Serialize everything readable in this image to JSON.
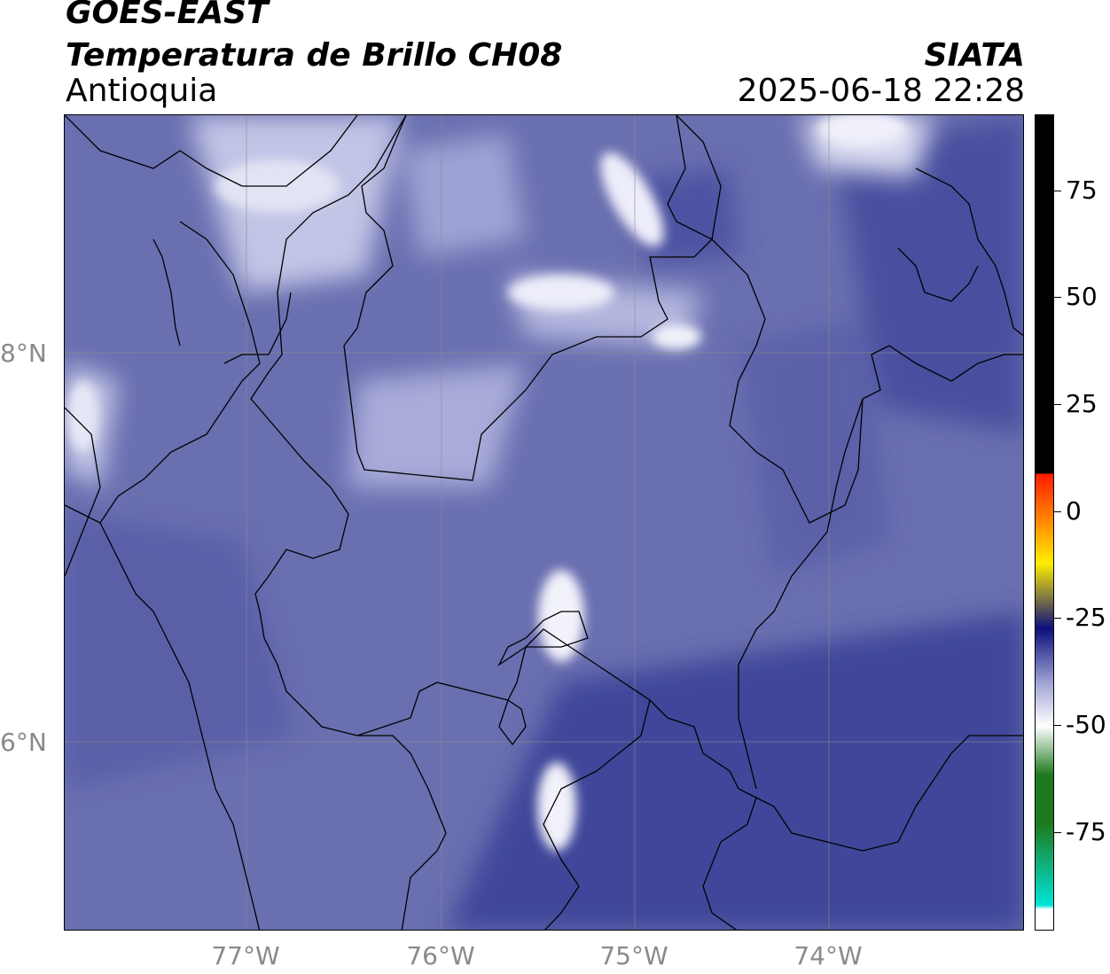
{
  "header": {
    "satellite": "GOES-EAST",
    "product": "Temperatura de Brillo CH08",
    "region": "Antioquia",
    "organization": "SIATA",
    "datetime": "2025-06-18 22:28"
  },
  "map": {
    "lat_labels": [
      "8°N",
      "6°N"
    ],
    "lon_labels": [
      "77°W",
      "76°W",
      "75°W",
      "74°W"
    ],
    "gridlines": true
  },
  "colorbar": {
    "tick_labels": [
      "75",
      "50",
      "25",
      "0",
      "-25",
      "-50",
      "-75"
    ],
    "range": [
      -95,
      90
    ],
    "colors": {
      "cyan": "#00e5d8",
      "green": "#1f7a1f",
      "white": "#ffffff",
      "lavender": "#a6aad8",
      "navy": "#0c0f7a",
      "yellow": "#ffee00",
      "orange": "#ff8c00",
      "red": "#ff1a00",
      "black": "#000000"
    }
  },
  "field_colors": {
    "base": "#6a6fb0",
    "dark": "#3f4596",
    "light": "#c8cbe8",
    "bright": "#f2f2fa"
  }
}
